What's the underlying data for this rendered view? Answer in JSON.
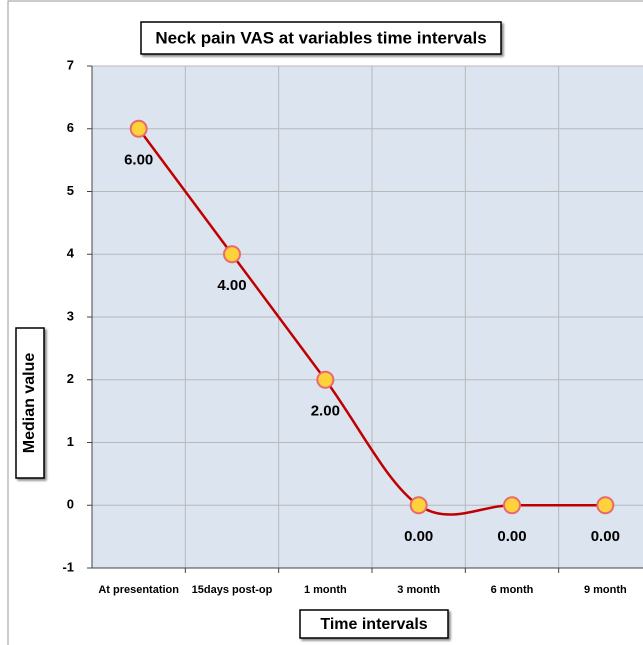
{
  "chart_data": {
    "type": "line",
    "title": "Neck pain VAS at variables time intervals",
    "x_label": "Time intervals",
    "y_label": "Median value",
    "categories": [
      "At presentation",
      "15days post-op",
      "1 month",
      "3 month",
      "6 month",
      "9 month"
    ],
    "series": [
      {
        "name": "Median value",
        "color": "#c00000",
        "values": [
          6,
          4,
          2,
          0,
          0,
          0
        ],
        "value_labels": [
          "6.00",
          "4.00",
          "2.00",
          "0.00",
          "0.00",
          "0.00"
        ]
      }
    ],
    "ylim": [
      -1,
      7
    ],
    "yticks": [
      -1,
      0,
      1,
      2,
      3,
      4,
      5,
      6,
      7
    ],
    "grid": true,
    "smooth": true
  }
}
